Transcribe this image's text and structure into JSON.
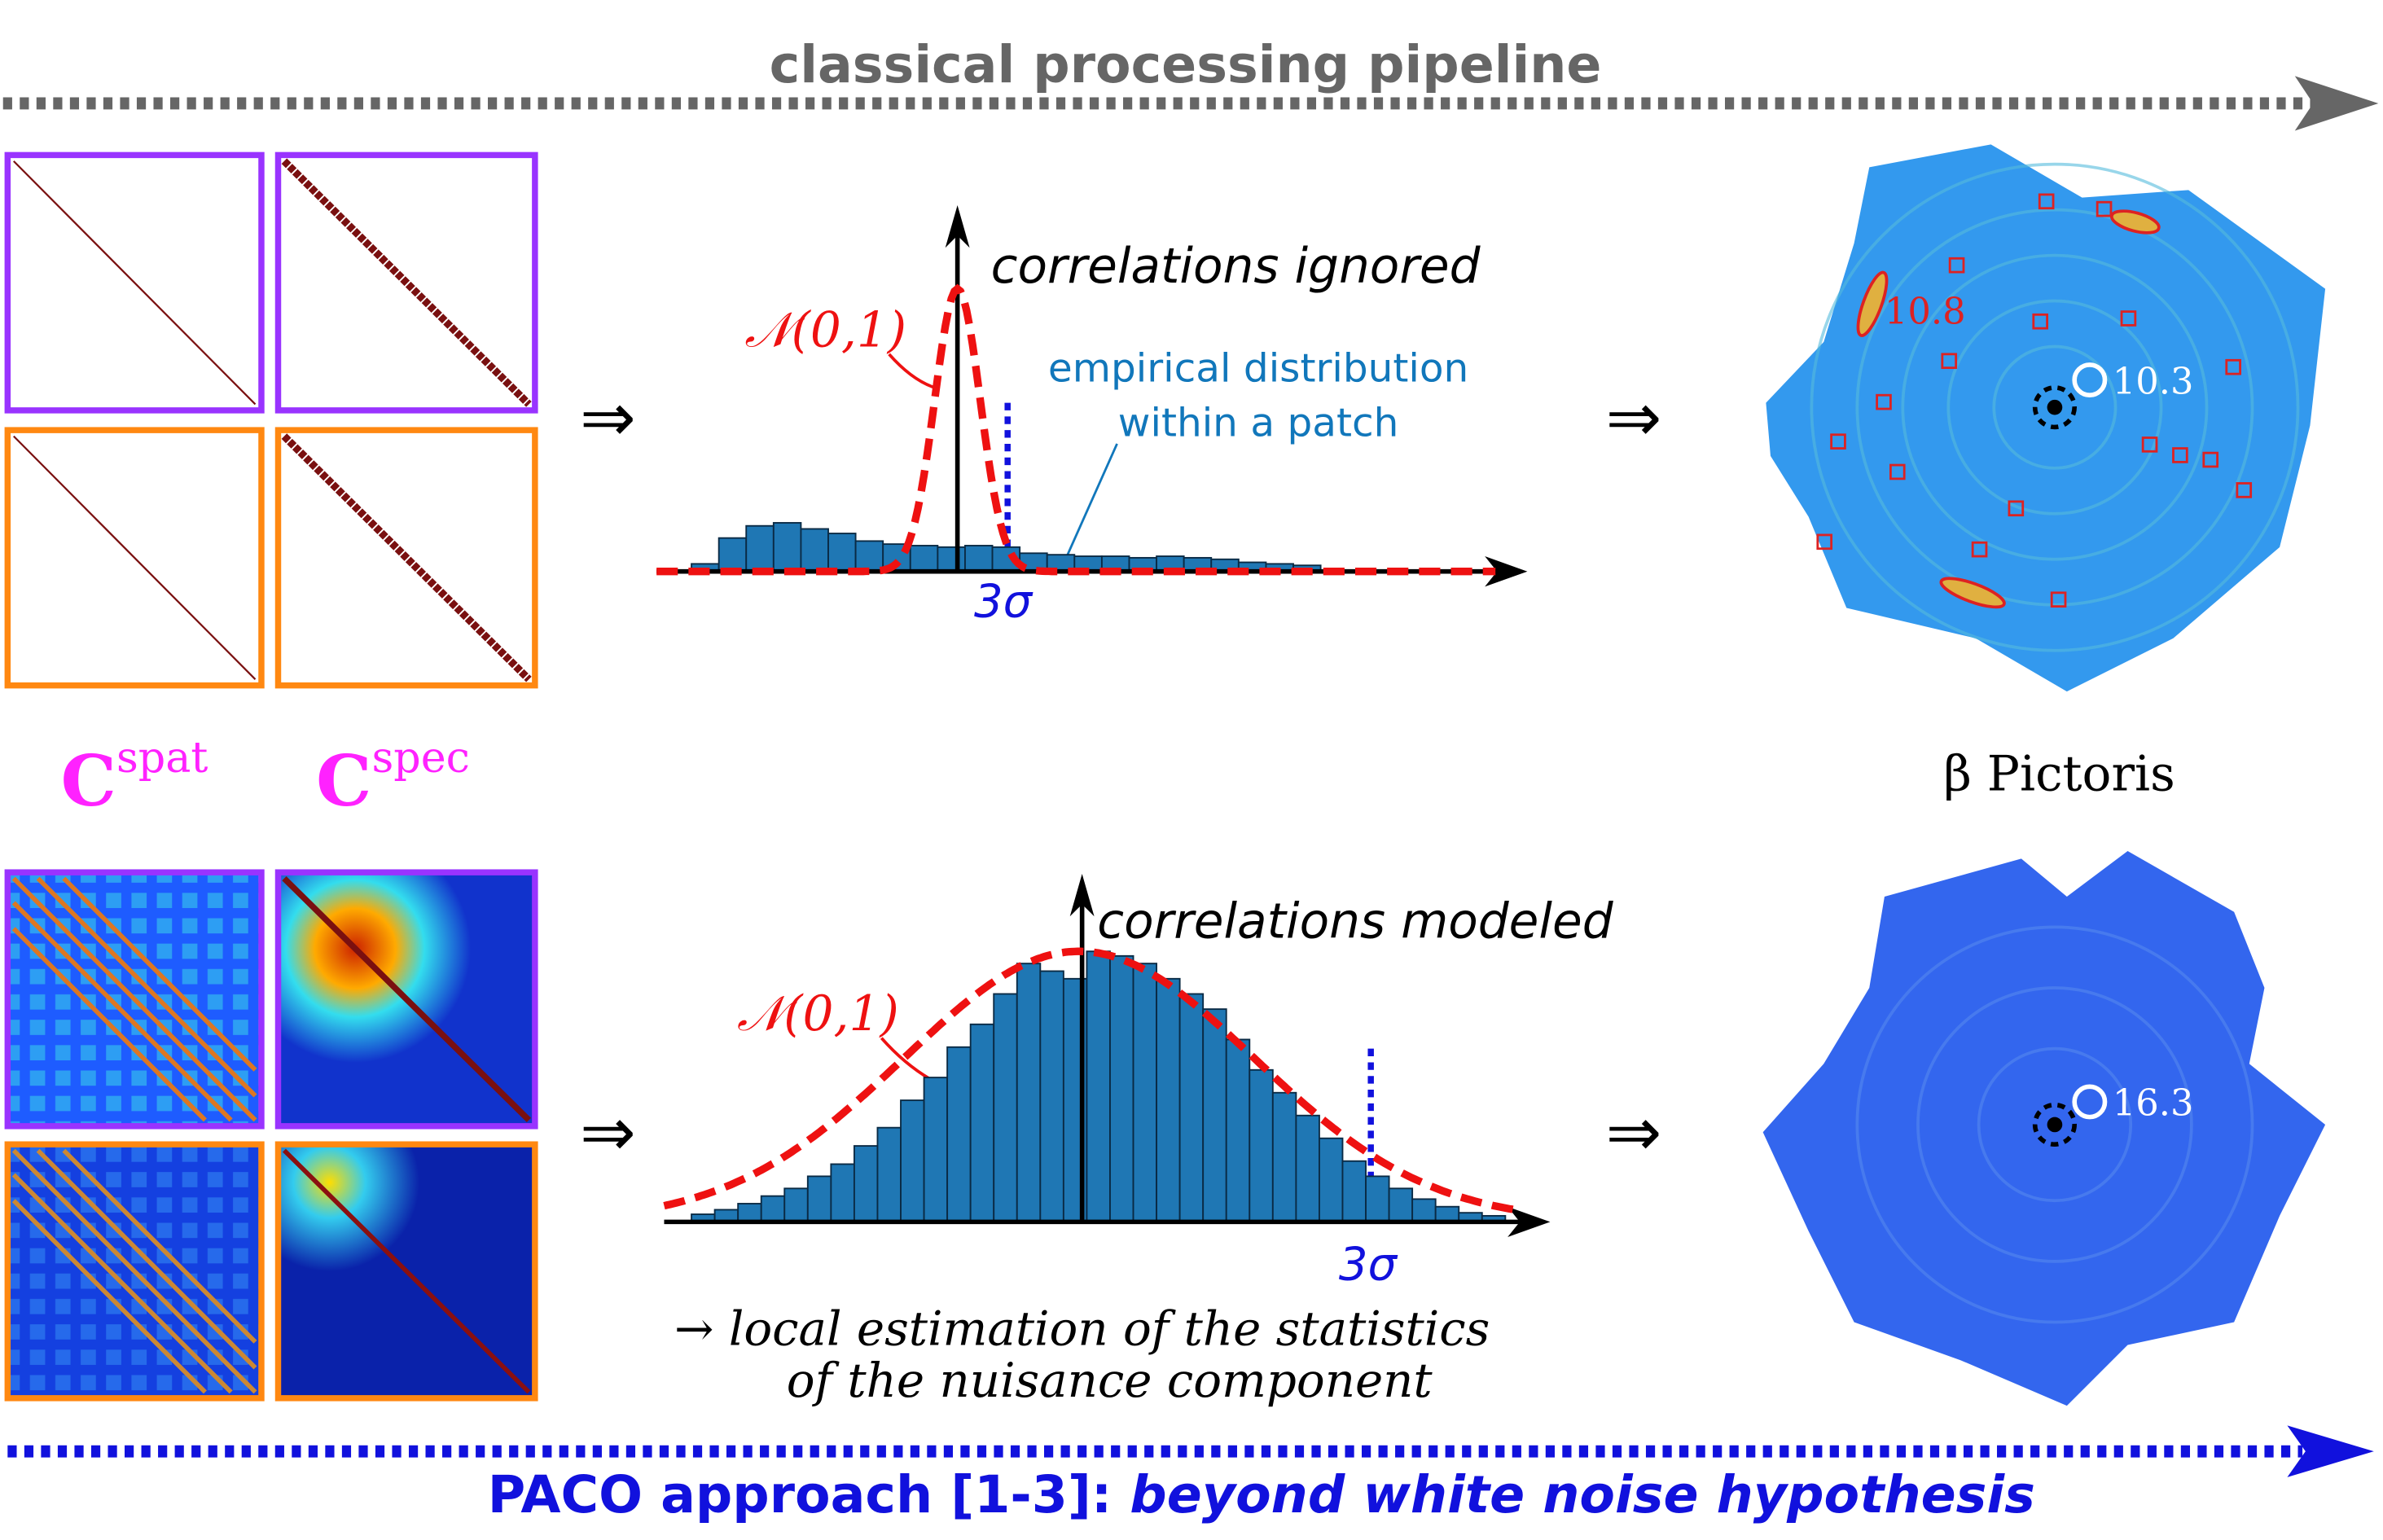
{
  "header": {
    "title": "classical processing pipeline"
  },
  "matrices": {
    "labels": [
      {
        "base": "C",
        "sup": "spat"
      },
      {
        "base": "C",
        "sup": "spec"
      }
    ]
  },
  "arrows": [
    "⇒",
    "⇒",
    "⇒",
    "⇒"
  ],
  "top_panel": {
    "title": "correlations ignored",
    "gaussian_label": "𝒩(0,1)",
    "annotation": [
      "empirical distribution",
      "within a patch"
    ],
    "threshold_label": "3σ",
    "histogram": [
      5,
      22,
      30,
      32,
      28,
      25,
      20,
      18,
      17,
      16,
      17,
      16,
      12,
      11,
      10,
      10,
      9,
      10,
      9,
      8,
      6,
      5,
      4
    ]
  },
  "top_image": {
    "labels": [
      "10.8",
      "10.3"
    ],
    "caption": "β Pictoris"
  },
  "bottom_panel": {
    "title": "correlations modeled",
    "gaussian_label": "𝒩(0,1)",
    "threshold_label": "3σ",
    "footnote": [
      "→ local estimation of the statistics",
      "of the nuisance component"
    ],
    "histogram": [
      5,
      8,
      12,
      17,
      22,
      30,
      38,
      50,
      62,
      80,
      95,
      115,
      130,
      150,
      170,
      165,
      160,
      178,
      175,
      170,
      160,
      150,
      140,
      120,
      100,
      85,
      70,
      55,
      40,
      30,
      22,
      15,
      10,
      6,
      4
    ]
  },
  "bottom_image": {
    "label": "16.3"
  },
  "footer": {
    "prefix": "PACO approach [1-3]: ",
    "emphasis": "beyond white noise hypothesis"
  }
}
